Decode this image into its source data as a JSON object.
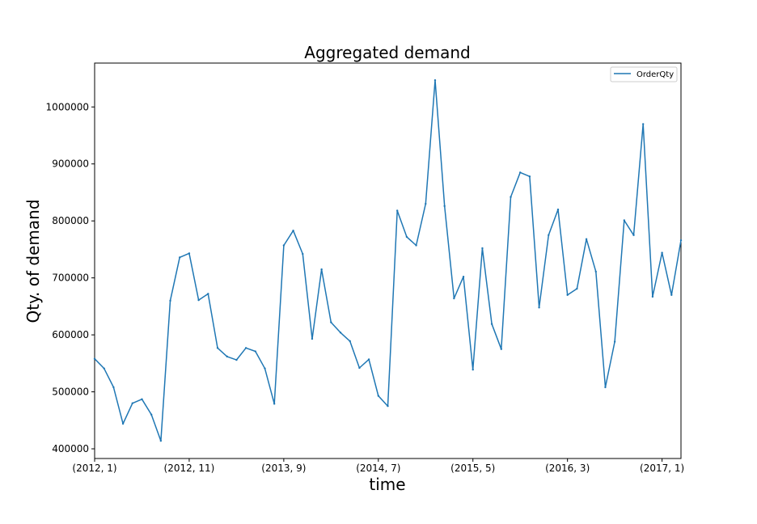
{
  "chart_data": {
    "type": "line",
    "title": "Aggregated demand",
    "xlabel": "time",
    "ylabel": "Qty. of demand",
    "x_tick_labels": [
      "(2012, 1)",
      "(2012, 11)",
      "(2013, 9)",
      "(2014, 7)",
      "(2015, 5)",
      "(2016, 3)",
      "(2017, 1)"
    ],
    "x_tick_index": [
      0,
      10,
      20,
      30,
      40,
      50,
      60
    ],
    "y_ticks": [
      400000,
      500000,
      600000,
      700000,
      800000,
      900000,
      1000000
    ],
    "y_tick_labels": [
      "400000",
      "500000",
      "600000",
      "700000",
      "800000",
      "900000",
      "1000000"
    ],
    "ylim": [
      383000,
      1077000
    ],
    "xlim_index": [
      0,
      62
    ],
    "grid": false,
    "legend_position": "top-right",
    "colors": {
      "series": "#1f77b4"
    },
    "series": [
      {
        "name": "OrderQty",
        "values": [
          558000,
          541000,
          508000,
          444000,
          480000,
          487000,
          460000,
          414000,
          660000,
          736000,
          743000,
          661000,
          672000,
          577000,
          562000,
          556000,
          577000,
          571000,
          541000,
          479000,
          757000,
          783000,
          742000,
          593000,
          715000,
          622000,
          604000,
          589000,
          542000,
          557000,
          493000,
          475000,
          818000,
          772000,
          757000,
          830000,
          1047000,
          826000,
          664000,
          702000,
          539000,
          752000,
          619000,
          575000,
          842000,
          885000,
          878000,
          648000,
          775000,
          820000,
          670000,
          681000,
          768000,
          711000,
          508000,
          588000,
          801000,
          775000,
          970000,
          667000,
          744000,
          670000,
          766000
        ]
      }
    ]
  }
}
